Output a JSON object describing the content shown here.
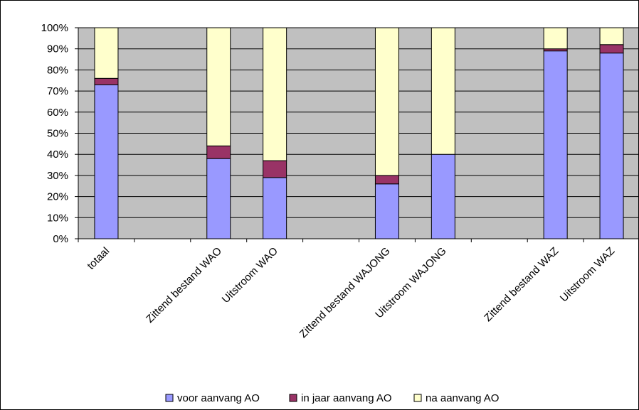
{
  "chart_data": {
    "type": "bar",
    "stacked": true,
    "percent_stacked": true,
    "categories": [
      "totaal",
      "",
      "Zittend bestand WAO",
      "Uitstroom WAO",
      "",
      "Zittend bestand WAJONG",
      "Uitstroom WAJONG",
      "",
      "Zittend bestand WAZ",
      "Uitstroom WAZ"
    ],
    "series": [
      {
        "name": "voor aanvang AO",
        "color": "#9999FF",
        "values": [
          73,
          null,
          38,
          29,
          null,
          26,
          40,
          null,
          89,
          88
        ]
      },
      {
        "name": "in jaar aanvang AO",
        "color": "#993366",
        "values": [
          3,
          null,
          6,
          8,
          null,
          4,
          0,
          null,
          1,
          4
        ]
      },
      {
        "name": "na aanvang AO",
        "color": "#FFFFCC",
        "values": [
          24,
          null,
          56,
          63,
          null,
          70,
          60,
          null,
          10,
          8
        ]
      }
    ],
    "y_ticks": [
      "0%",
      "10%",
      "20%",
      "30%",
      "40%",
      "50%",
      "60%",
      "70%",
      "80%",
      "90%",
      "100%"
    ],
    "ylim": [
      0,
      100
    ],
    "grid": true,
    "plot_background": "#C0C0C0",
    "legend_position": "bottom",
    "title": "",
    "xlabel": "",
    "ylabel": ""
  }
}
